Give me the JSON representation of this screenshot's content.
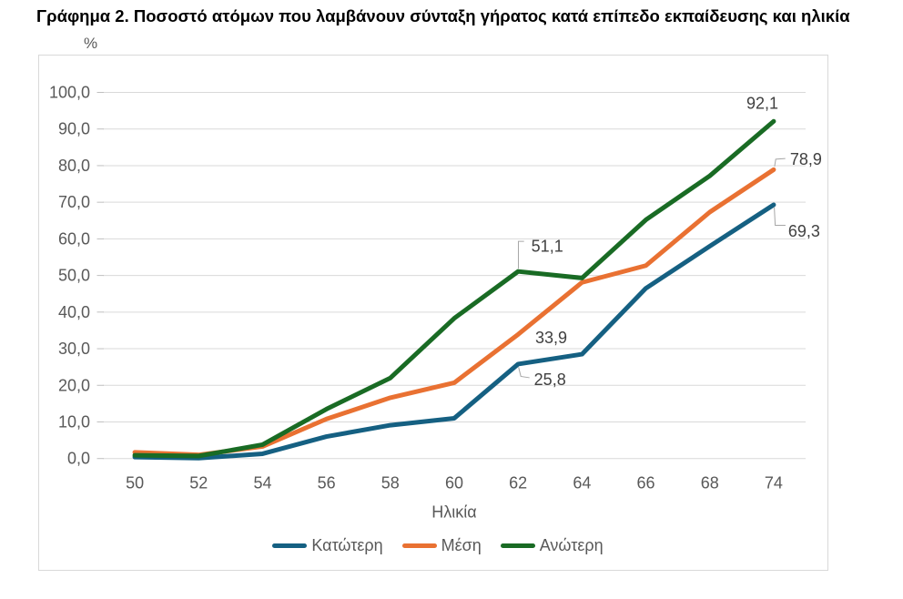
{
  "title": "Γράφημα 2. Ποσοστό ατόμων που λαμβάνουν σύνταξη γήρατος κατά επίπεδο εκπαίδευσης και ηλικία",
  "chart_data": {
    "type": "line",
    "x": [
      50,
      52,
      54,
      56,
      58,
      60,
      62,
      64,
      66,
      68,
      74
    ],
    "x_labels": [
      "50",
      "52",
      "54",
      "56",
      "58",
      "60",
      "62",
      "64",
      "66",
      "68",
      "74"
    ],
    "xlabel": "Ηλικία",
    "ylabel": "%",
    "ylim": [
      0,
      100
    ],
    "ytick_step": 10,
    "ytick_labels": [
      "0,0",
      "10,0",
      "20,0",
      "30,0",
      "40,0",
      "50,0",
      "60,0",
      "70,0",
      "80,0",
      "90,0",
      "100,0"
    ],
    "grid": true,
    "legend_position": "bottom",
    "series": [
      {
        "name": "Κατώτερη",
        "color": "#156082",
        "values": [
          0.4,
          0.1,
          1.3,
          6.0,
          9.1,
          11.0,
          25.8,
          28.5,
          46.5,
          58.0,
          69.3
        ]
      },
      {
        "name": "Μέση",
        "color": "#E97132",
        "values": [
          1.7,
          1.0,
          3.3,
          10.8,
          16.6,
          20.7,
          33.9,
          48.1,
          52.7,
          67.3,
          78.9
        ]
      },
      {
        "name": "Ανώτερη",
        "color": "#196B24",
        "values": [
          0.9,
          0.7,
          3.8,
          13.5,
          22.0,
          38.3,
          51.1,
          49.3,
          65.2,
          77.2,
          92.1
        ]
      }
    ],
    "annotations": [
      {
        "series": "Ανώτερη",
        "x": 62,
        "text": "51,1",
        "leader": true
      },
      {
        "series": "Μέση",
        "x": 62,
        "text": "33,9",
        "leader": false
      },
      {
        "series": "Κατώτερη",
        "x": 62,
        "text": "25,8",
        "leader": true
      },
      {
        "series": "Ανώτερη",
        "x": 74,
        "text": "92,1",
        "leader": false
      },
      {
        "series": "Μέση",
        "x": 74,
        "text": "78,9",
        "leader": true
      },
      {
        "series": "Κατώτερη",
        "x": 74,
        "text": "69,3",
        "leader": true
      }
    ]
  }
}
